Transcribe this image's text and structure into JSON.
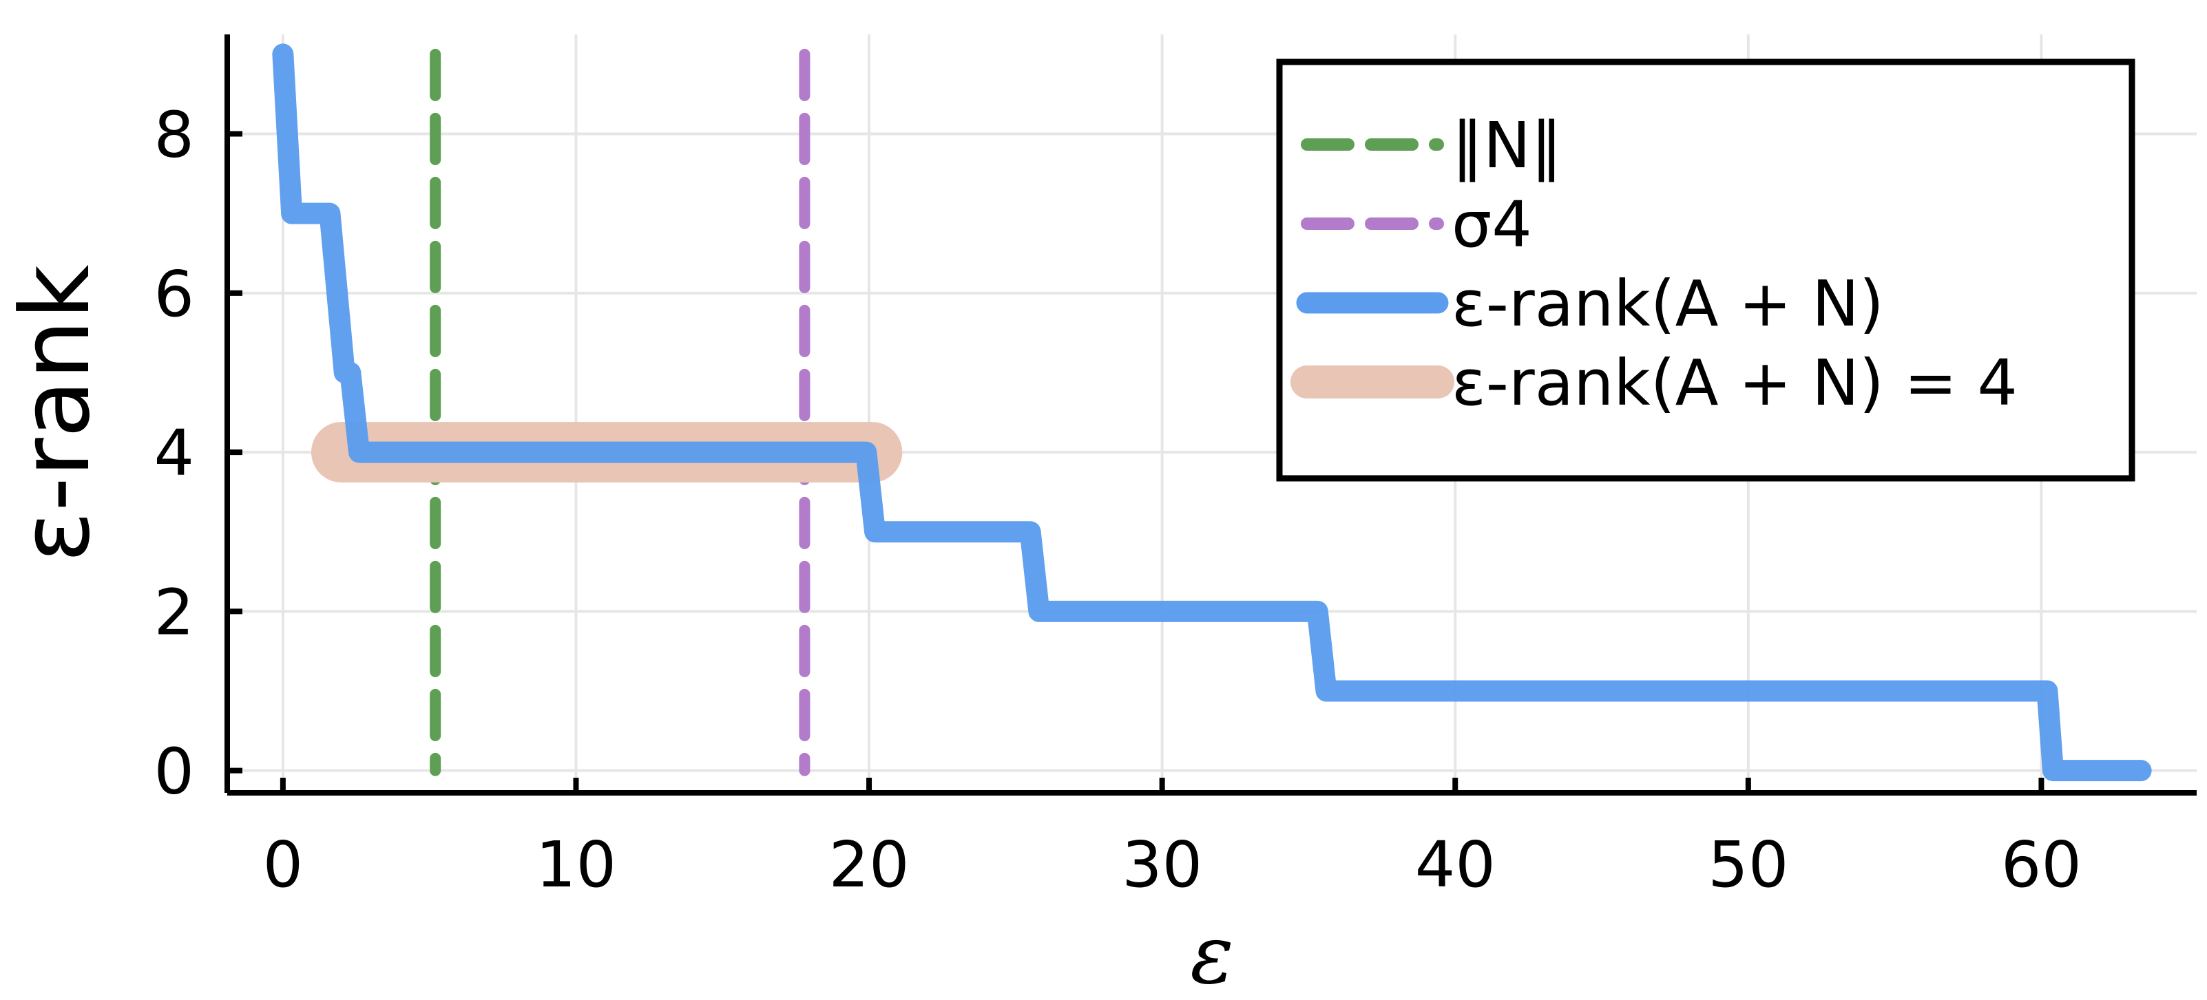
{
  "chart_data": {
    "type": "line",
    "xlabel": "ε",
    "ylabel": "ε-rank",
    "xlim": [
      -1.9,
      65.3
    ],
    "ylim": [
      -0.28,
      9.25
    ],
    "xticks": [
      0,
      10,
      20,
      30,
      40,
      50,
      60
    ],
    "yticks": [
      0,
      2,
      4,
      6,
      8
    ],
    "grid": true,
    "legend_position": "top-right",
    "vlines": [
      {
        "name": "‖N‖",
        "x": 5.2,
        "color": "#5f9e55",
        "style": "dashed"
      },
      {
        "name": "σ4",
        "x": 17.8,
        "color": "#b27ccb",
        "style": "dashed"
      }
    ],
    "series": [
      {
        "name": "ε-rank(A + N)",
        "color": "#5b9cee",
        "style": "solid",
        "x": [
          0,
          0.3,
          1.6,
          2.1,
          2.3,
          2.6,
          19.9,
          20.2,
          25.5,
          25.8,
          35.3,
          35.6,
          60.2,
          60.4,
          63.4
        ],
        "y": [
          9,
          7,
          7,
          5,
          5,
          4,
          4,
          3,
          3,
          2,
          2,
          1,
          1,
          0,
          0
        ]
      },
      {
        "name": "ε-rank(A + N) = 4",
        "color": "#e8c5b5",
        "style": "band",
        "x": [
          2.0,
          20.1
        ],
        "y": [
          4,
          4
        ]
      }
    ],
    "legend": [
      {
        "label": "‖N‖",
        "kind": "dashed",
        "color": "#5f9e55"
      },
      {
        "label": "σ4",
        "kind": "dashed",
        "color": "#b27ccb"
      },
      {
        "label": "ε-rank(A + N)",
        "kind": "line",
        "color": "#5b9cee"
      },
      {
        "label": "ε-rank(A + N) = 4",
        "kind": "band",
        "color": "#e8c5b5"
      }
    ]
  }
}
